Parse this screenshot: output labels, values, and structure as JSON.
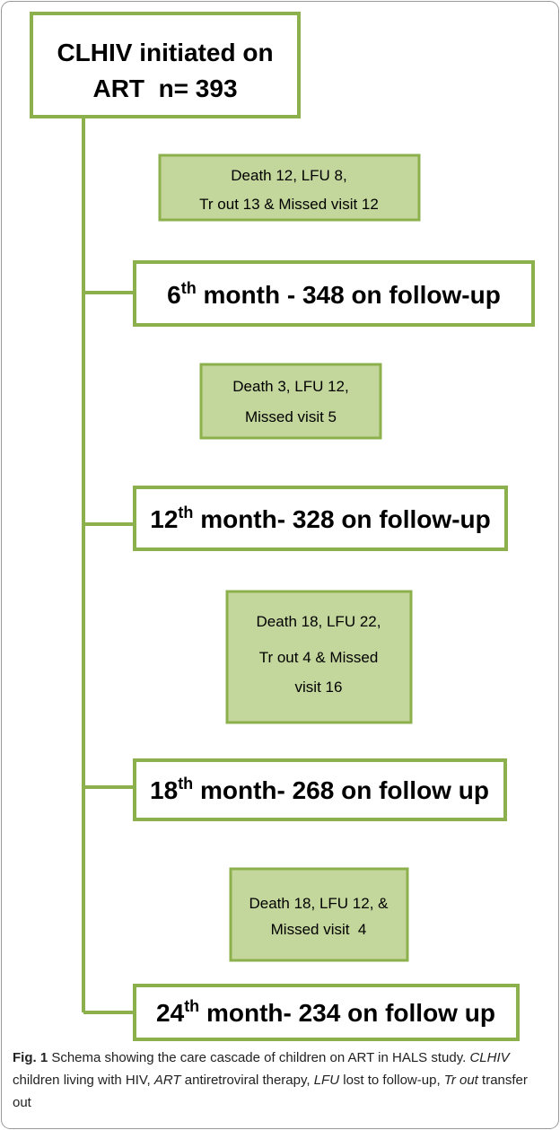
{
  "start": {
    "lines": [
      "CLHIV initiated on",
      "ART  n= 393"
    ]
  },
  "losses": [
    {
      "lines": [
        "Death 12, LFU 8,",
        "Tr out 13 & Missed visit 12"
      ]
    },
    {
      "lines": [
        "Death 3, LFU 12,",
        "Missed visit 5"
      ]
    },
    {
      "lines": [
        "Death 18, LFU 22,",
        "Tr out 4 & Missed",
        "visit 16"
      ]
    },
    {
      "lines": [
        "Death 18, LFU 12, &",
        "Missed visit  4"
      ]
    }
  ],
  "milestones": [
    {
      "number": "6",
      "sup": "th",
      "rest": " month - 348 on follow-up"
    },
    {
      "number": "12",
      "sup": "th",
      "rest": " month- 328 on follow-up"
    },
    {
      "number": "18",
      "sup": "th",
      "rest": " month- 268 on follow up"
    },
    {
      "number": "24",
      "sup": "th",
      "rest": " month- 234 on follow up"
    }
  ],
  "caption": {
    "label": "Fig. 1",
    "segments": [
      {
        "text": " Schema showing the care cascade of children on ART in HALS study. "
      },
      {
        "text": "CLHIV",
        "italic": true
      },
      {
        "text": " children living with HIV, "
      },
      {
        "text": "ART",
        "italic": true
      },
      {
        "text": " antiretroviral therapy, "
      },
      {
        "text": "LFU",
        "italic": true
      },
      {
        "text": " lost to follow-up, "
      },
      {
        "text": "Tr out",
        "italic": true
      },
      {
        "text": " transfer out"
      }
    ]
  }
}
